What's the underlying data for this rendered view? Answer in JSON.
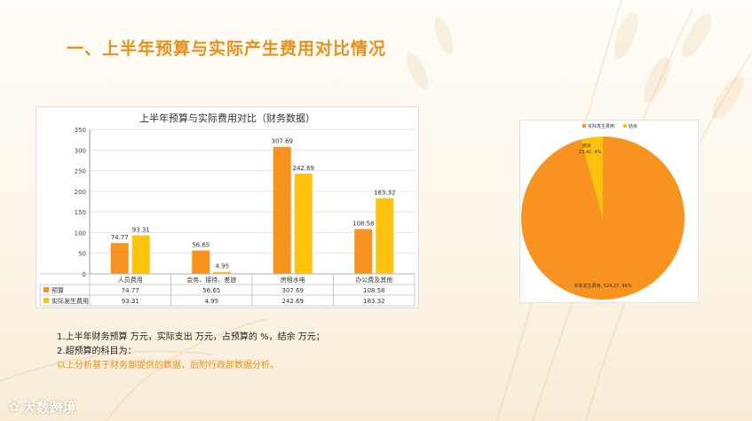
{
  "slide": {
    "title": "一、上半年预算与实际产生费用对比情况",
    "notes": {
      "line1": "1.上半年财务预算  万元，实际支出  万元，占预算的  %，结余  万元；",
      "line2": "2.超预算的科目为：",
      "line3": "以上分析基于财务部提供的数据，后附行政部数据分析。"
    },
    "logo_text": "大数跨境"
  },
  "colors": {
    "budget": "#f7931e",
    "actual": "#ffc20e",
    "accent": "#e8901a"
  },
  "chart_data": [
    {
      "type": "bar",
      "title": "上半年预算与实际费用对比（财务数据）",
      "categories": [
        "人员费用",
        "会务、接待、差旅",
        "房租水电",
        "办公费及其他"
      ],
      "series": [
        {
          "name": "预算",
          "values": [
            74.77,
            56.65,
            307.69,
            108.58
          ],
          "labels": [
            "74.77",
            "56.65",
            "307.69",
            "108.58"
          ]
        },
        {
          "name": "实际发生费用",
          "values": [
            93.31,
            4.95,
            242.69,
            183.32
          ],
          "labels": [
            "93.31",
            "4.95",
            "242.69",
            "183.32"
          ]
        }
      ],
      "yticks": [
        "0",
        "50",
        "100",
        "150",
        "200",
        "250",
        "300",
        "350"
      ],
      "ylim": [
        0,
        350
      ],
      "grid": true,
      "legend": "data-table"
    },
    {
      "type": "pie",
      "legend_entries": [
        "实际发生费用",
        "结余"
      ],
      "slices": [
        {
          "name": "实际发生费用",
          "value": 524.27,
          "percent": 96,
          "label": "实际发生费用, 524.27, 96%"
        },
        {
          "name": "结余",
          "value": 23.41,
          "percent": 4,
          "label": "结余, 23.41, 4%"
        }
      ],
      "legend": "top"
    }
  ]
}
